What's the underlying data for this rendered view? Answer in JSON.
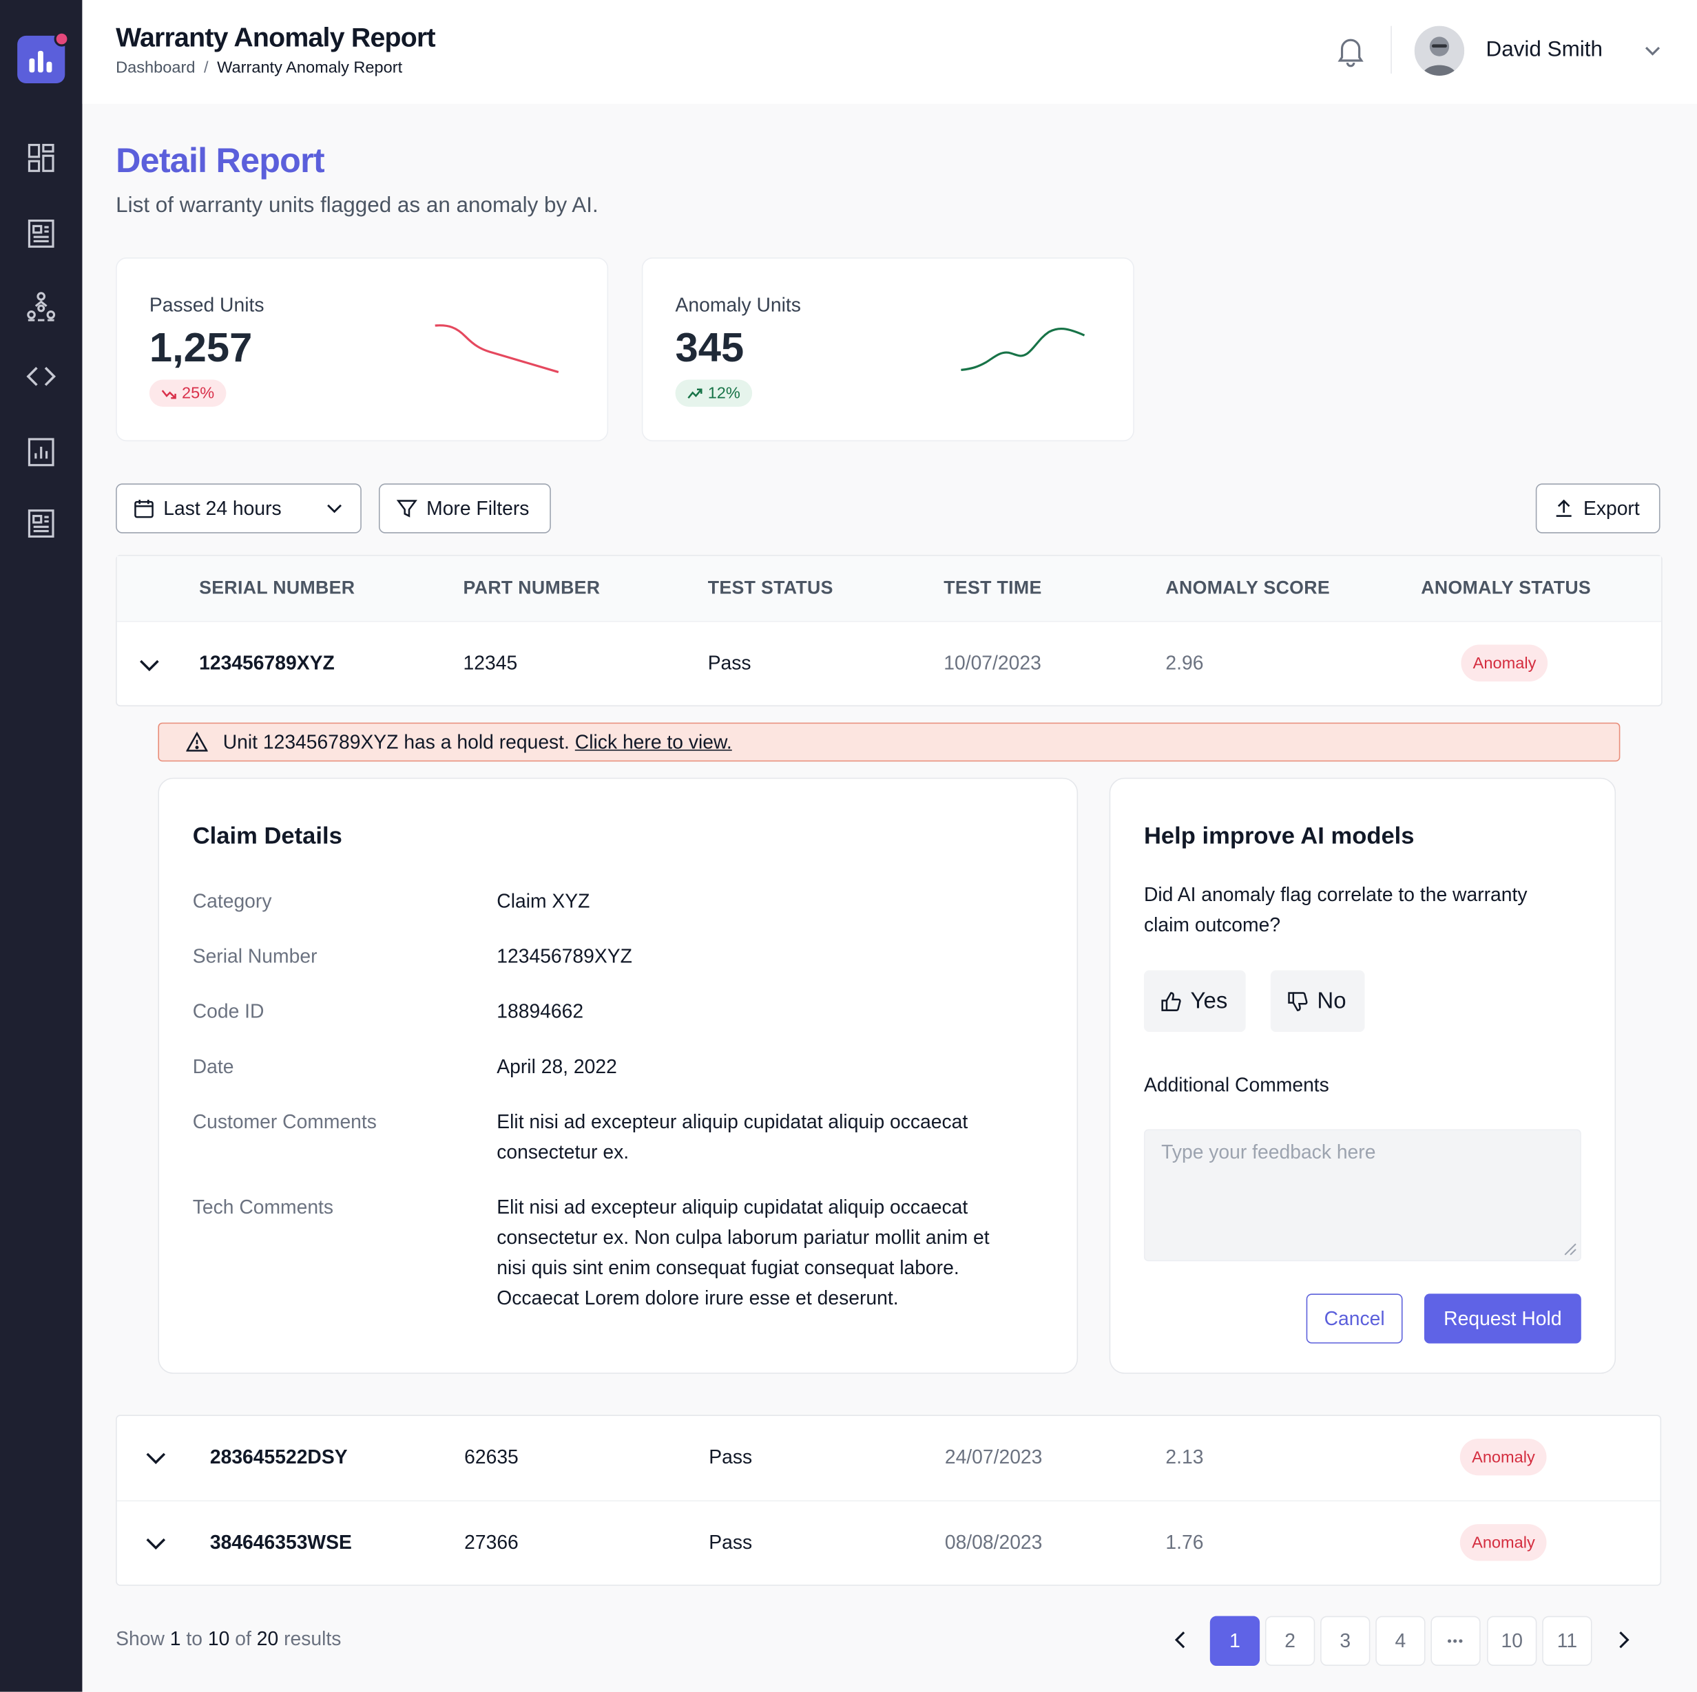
{
  "header": {
    "title": "Warranty Anomaly Report",
    "breadcrumb": [
      "Dashboard",
      "Warranty Anomaly Report"
    ],
    "user_name": "David Smith"
  },
  "sidebar": {
    "items": [
      {
        "icon": "dashboard-icon"
      },
      {
        "icon": "document-icon"
      },
      {
        "icon": "hierarchy-icon"
      },
      {
        "icon": "code-icon"
      },
      {
        "icon": "chart-icon"
      },
      {
        "icon": "report-icon"
      }
    ]
  },
  "page": {
    "title": "Detail Report",
    "subtitle": "List of warranty units flagged as an anomaly by AI."
  },
  "stats": [
    {
      "label": "Passed Units",
      "value": "1,257",
      "change": "25%",
      "trend": "down",
      "color": "#e5485e"
    },
    {
      "label": "Anomaly Units",
      "value": "345",
      "change": "12%",
      "trend": "up",
      "color": "#177347"
    }
  ],
  "filters": {
    "time_range": "Last 24 hours",
    "more_filters": "More Filters",
    "export": "Export"
  },
  "table": {
    "columns": [
      "SERIAL NUMBER",
      "PART NUMBER",
      "TEST STATUS",
      "TEST TIME",
      "ANOMALY SCORE",
      "ANOMALY STATUS"
    ],
    "rows": [
      {
        "serial": "123456789XYZ",
        "part": "12345",
        "status": "Pass",
        "time": "10/07/2023",
        "score": "2.96",
        "anomaly": "Anomaly"
      },
      {
        "serial": "283645522DSY",
        "part": "62635",
        "status": "Pass",
        "time": "24/07/2023",
        "score": "2.13",
        "anomaly": "Anomaly"
      },
      {
        "serial": "384646353WSE",
        "part": "27366",
        "status": "Pass",
        "time": "08/08/2023",
        "score": "1.76",
        "anomaly": "Anomaly"
      }
    ]
  },
  "alert": {
    "text": "Unit 123456789XYZ has a hold request.",
    "link": "Click here to view."
  },
  "claim": {
    "title": "Claim Details",
    "fields": [
      {
        "label": "Category",
        "value": "Claim XYZ"
      },
      {
        "label": "Serial Number",
        "value": "123456789XYZ"
      },
      {
        "label": "Code ID",
        "value": "18894662"
      },
      {
        "label": "Date",
        "value": "April 28, 2022"
      },
      {
        "label": "Customer Comments",
        "value": "Elit nisi ad excepteur aliquip cupidatat aliquip occaecat consectetur ex."
      },
      {
        "label": "Tech Comments",
        "value": "Elit nisi ad excepteur aliquip cupidatat aliquip occaecat consectetur ex. Non culpa laborum pariatur mollit anim et nisi quis sint enim consequat fugiat consequat labore. Occaecat Lorem dolore irure esse et deserunt."
      }
    ]
  },
  "feedback": {
    "title": "Help improve AI models",
    "question": "Did AI anomaly flag correlate to the warranty claim outcome?",
    "yes": "Yes",
    "no": "No",
    "comments_label": "Additional Comments",
    "placeholder": "Type your feedback here",
    "value": "",
    "cancel": "Cancel",
    "submit": "Request Hold"
  },
  "pagination": {
    "prefix": "Show",
    "from": "1",
    "to_word": "to",
    "to": "10",
    "of_word": "of",
    "total": "20",
    "suffix": "results",
    "pages": [
      "1",
      "2",
      "3",
      "4",
      "•••",
      "10",
      "11"
    ],
    "current": "1"
  }
}
